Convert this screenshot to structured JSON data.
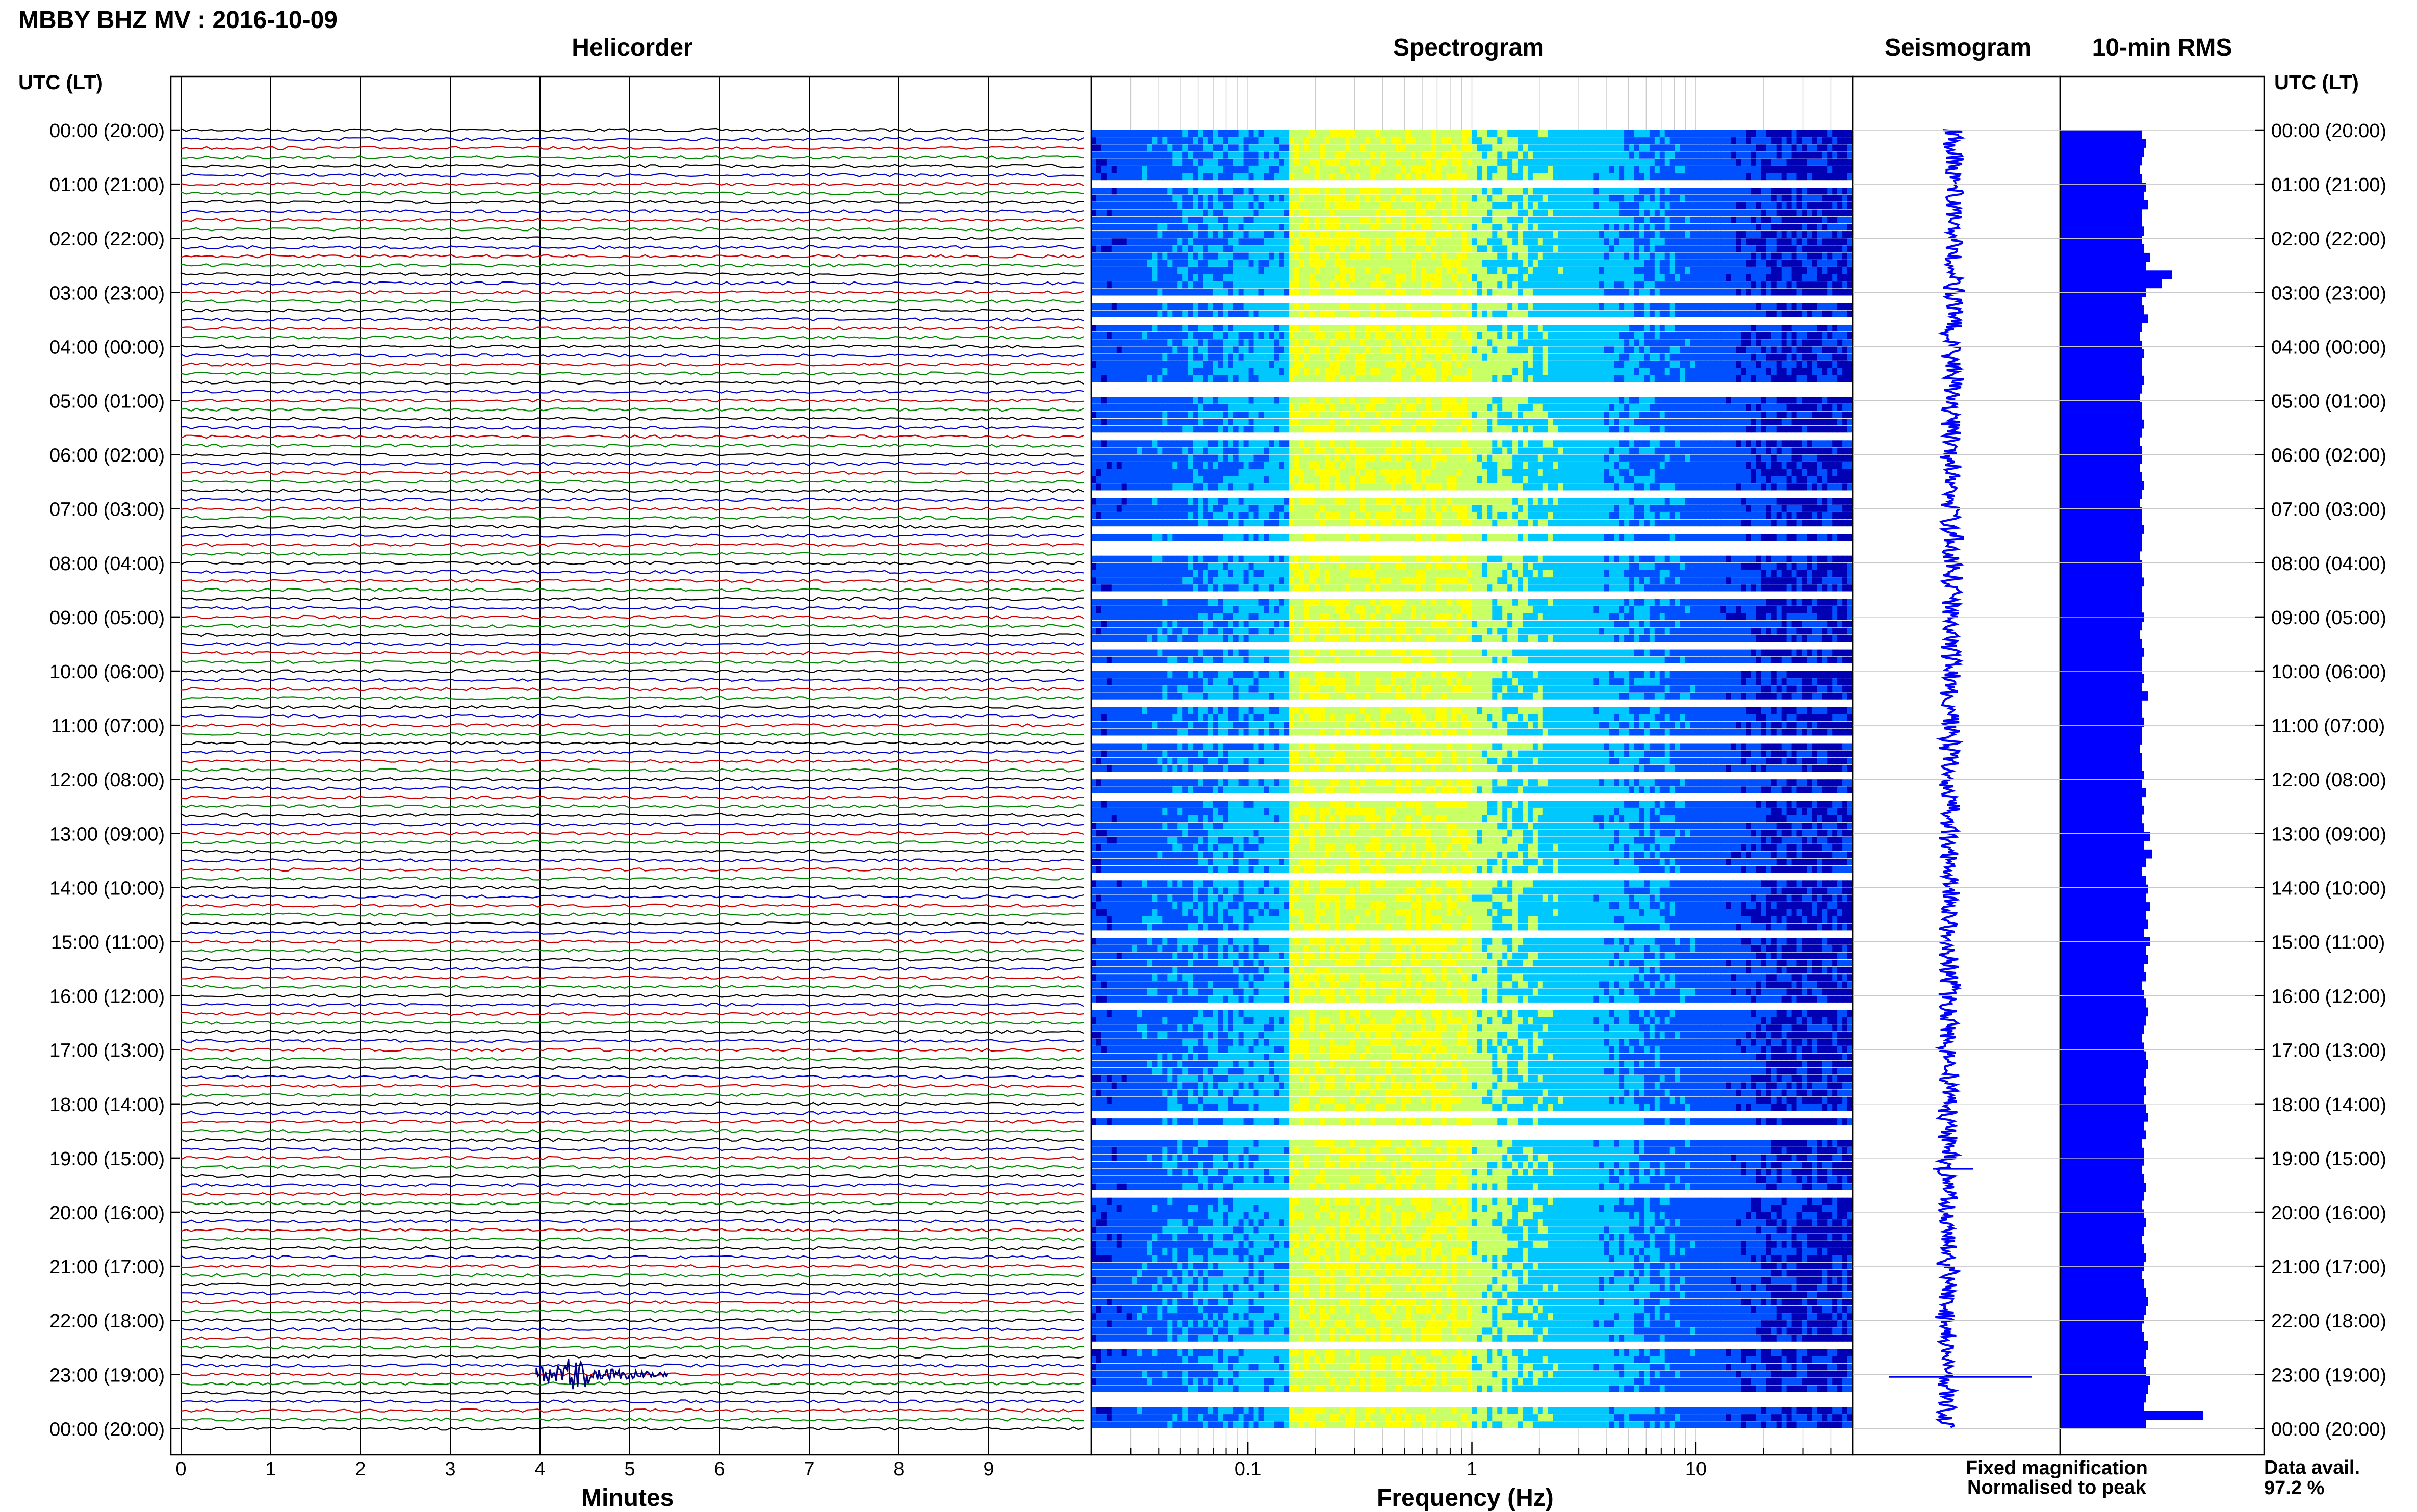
{
  "header": {
    "station_title": "MBBY BHZ MV : 2016-10-09",
    "panels": {
      "helicorder": "Helicorder",
      "spectrogram": "Spectrogram",
      "seismogram": "Seismogram",
      "rms": "10-min RMS"
    },
    "utc_label": "UTC (LT)"
  },
  "footer": {
    "helicorder_xlabel": "Minutes",
    "spectrogram_xlabel": "Frequency (Hz)",
    "legend_fixed": "Fixed magnification",
    "legend_normalised": "Normalised to peak",
    "data_avail_label": "Data avail.",
    "data_avail_value": "97.2 %"
  },
  "colors": {
    "fixed_magnification": "#0000ff",
    "normalised_to_peak": "#ff0000",
    "trace_cycle": [
      "#000000",
      "#0000cc",
      "#cc0000",
      "#008800"
    ],
    "rms_bar": "#0000ff",
    "seismogram": "#0000ff"
  },
  "chart_data": [
    {
      "type": "line",
      "name": "Helicorder",
      "xlabel": "Minutes",
      "x_ticks": [
        "0",
        "1",
        "2",
        "3",
        "4",
        "5",
        "6",
        "7",
        "8",
        "9"
      ],
      "xlim": [
        0,
        10
      ],
      "row_duration_minutes": 10,
      "rows_per_hour": 6,
      "hour_labels": [
        "00:00 (20:00)",
        "01:00 (21:00)",
        "02:00 (22:00)",
        "03:00 (23:00)",
        "04:00 (00:00)",
        "05:00 (01:00)",
        "06:00 (02:00)",
        "07:00 (03:00)",
        "08:00 (04:00)",
        "09:00 (05:00)",
        "10:00 (06:00)",
        "11:00 (07:00)",
        "12:00 (08:00)",
        "13:00 (09:00)",
        "14:00 (10:00)",
        "15:00 (11:00)",
        "16:00 (12:00)",
        "17:00 (13:00)",
        "18:00 (14:00)",
        "19:00 (15:00)",
        "20:00 (16:00)",
        "21:00 (17:00)",
        "22:00 (18:00)",
        "23:00 (19:00)",
        "00:00 (20:00)"
      ],
      "events": [
        {
          "hour": 23,
          "minute": 4.3,
          "label": ""
        }
      ]
    },
    {
      "type": "heatmap",
      "name": "Spectrogram",
      "xlabel": "Frequency (Hz)",
      "x_scale": "log",
      "x_ticks": [
        "0.1",
        "1",
        "10"
      ],
      "xlim": [
        0.02,
        50
      ],
      "colormap": [
        "#0000b4",
        "#0050ff",
        "#00c8ff",
        "#c8ff64",
        "#ffff00"
      ],
      "energy_peak_hz": [
        0.15,
        1.0
      ]
    },
    {
      "type": "line",
      "name": "Seismogram",
      "color": "#0000ff"
    },
    {
      "type": "bar",
      "name": "10-min RMS",
      "orientation": "horizontal",
      "values": [
        40,
        42,
        41,
        40,
        39,
        40,
        42,
        41,
        43,
        40,
        40,
        41,
        40,
        41,
        44,
        42,
        55,
        50,
        42,
        40,
        41,
        43,
        40,
        39,
        40,
        41,
        40,
        40,
        41,
        40,
        39,
        40,
        40,
        41,
        40,
        39,
        40,
        40,
        39,
        40,
        41,
        40,
        39,
        40,
        40,
        41,
        40,
        40,
        39,
        40,
        40,
        41,
        40,
        40,
        40,
        41,
        40,
        39,
        40,
        41,
        40,
        40,
        41,
        40,
        43,
        40,
        40,
        41,
        40,
        40,
        39,
        40,
        40,
        41,
        40,
        42,
        40,
        41,
        40,
        41,
        44,
        41,
        45,
        42,
        40,
        42,
        43,
        42,
        44,
        42,
        43,
        41,
        44,
        42,
        43,
        41,
        42,
        40,
        41,
        42,
        43,
        42,
        41,
        40,
        41,
        42,
        43,
        42,
        41,
        42,
        41,
        42,
        43,
        41,
        42,
        40,
        41,
        41,
        40,
        41,
        42,
        41,
        40,
        41,
        42,
        41,
        40,
        41,
        42,
        41,
        40,
        41,
        42,
        43,
        42,
        41,
        40,
        41,
        43,
        42,
        41,
        42,
        44,
        43,
        42,
        41,
        70,
        42
      ]
    }
  ]
}
